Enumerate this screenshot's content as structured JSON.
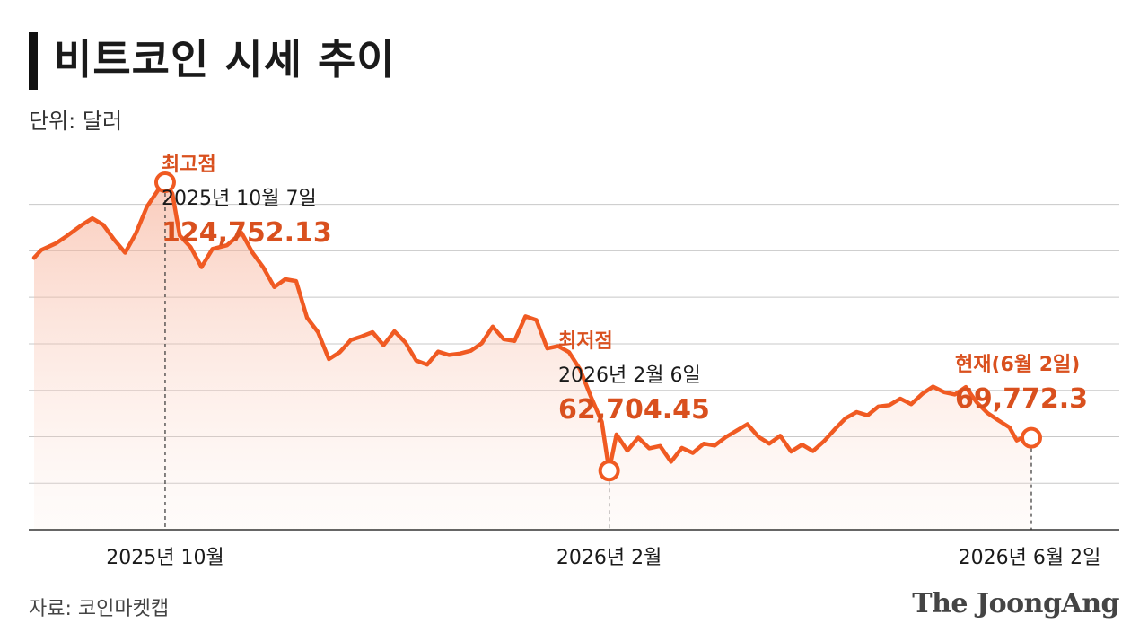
{
  "title": "비트코인 시세 추이",
  "unit_label": "단위: 달러",
  "source": "자료: 코인마켓캡",
  "logo": "The JoongAng",
  "colors": {
    "line": "#f05a22",
    "label": "#d9501e",
    "grid": "#c8c8c8"
  },
  "chart_data": {
    "type": "area",
    "title": "비트코인 시세 추이",
    "unit": "달러",
    "x_range": [
      "2025-09-01",
      "2026-06-02"
    ],
    "ylim": [
      50000,
      135000
    ],
    "x_ticks": [
      "2025년 10월",
      "2026년 2월",
      "2026년 6월 2일"
    ],
    "grid": true,
    "series": [
      {
        "values": [
          [
            "2025-09-01",
            108500
          ],
          [
            "2025-09-03",
            110200
          ],
          [
            "2025-09-07",
            111600
          ],
          [
            "2025-09-10",
            113200
          ],
          [
            "2025-09-14",
            115500
          ],
          [
            "2025-09-17",
            117000
          ],
          [
            "2025-09-20",
            115600
          ],
          [
            "2025-09-23",
            112400
          ],
          [
            "2025-09-26",
            109600
          ],
          [
            "2025-09-29",
            113800
          ],
          [
            "2025-10-02",
            119500
          ],
          [
            "2025-10-05",
            123000
          ],
          [
            "2025-10-07",
            124752.13
          ],
          [
            "2025-10-09",
            122300
          ],
          [
            "2025-10-11",
            113300
          ],
          [
            "2025-10-14",
            110800
          ],
          [
            "2025-10-17",
            106500
          ],
          [
            "2025-10-20",
            110400
          ],
          [
            "2025-10-24",
            111200
          ],
          [
            "2025-10-28",
            113900
          ],
          [
            "2025-10-31",
            109600
          ],
          [
            "2025-11-03",
            106400
          ],
          [
            "2025-11-06",
            102200
          ],
          [
            "2025-11-09",
            103900
          ],
          [
            "2025-11-12",
            103500
          ],
          [
            "2025-11-15",
            95600
          ],
          [
            "2025-11-18",
            92500
          ],
          [
            "2025-11-21",
            86700
          ],
          [
            "2025-11-24",
            88200
          ],
          [
            "2025-11-27",
            90800
          ],
          [
            "2025-11-30",
            91600
          ],
          [
            "2025-12-03",
            92500
          ],
          [
            "2025-12-06",
            89700
          ],
          [
            "2025-12-09",
            92700
          ],
          [
            "2025-12-12",
            90300
          ],
          [
            "2025-12-15",
            86400
          ],
          [
            "2025-12-18",
            85500
          ],
          [
            "2025-12-21",
            88300
          ],
          [
            "2025-12-24",
            87600
          ],
          [
            "2025-12-27",
            87900
          ],
          [
            "2025-12-30",
            88500
          ],
          [
            "2026-01-02",
            90100
          ],
          [
            "2026-01-05",
            93700
          ],
          [
            "2026-01-08",
            91000
          ],
          [
            "2026-01-11",
            90600
          ],
          [
            "2026-01-14",
            95900
          ],
          [
            "2026-01-17",
            95100
          ],
          [
            "2026-01-20",
            89000
          ],
          [
            "2026-01-23",
            89500
          ],
          [
            "2026-01-26",
            88200
          ],
          [
            "2026-01-29",
            84500
          ],
          [
            "2026-02-01",
            78600
          ],
          [
            "2026-02-04",
            73200
          ],
          [
            "2026-02-06",
            62704.45
          ],
          [
            "2026-02-08",
            70500
          ],
          [
            "2026-02-11",
            67000
          ],
          [
            "2026-02-14",
            69800
          ],
          [
            "2026-02-17",
            67500
          ],
          [
            "2026-02-20",
            68000
          ],
          [
            "2026-02-23",
            64600
          ],
          [
            "2026-02-26",
            67600
          ],
          [
            "2026-03-01",
            66500
          ],
          [
            "2026-03-04",
            68500
          ],
          [
            "2026-03-07",
            68100
          ],
          [
            "2026-03-10",
            69900
          ],
          [
            "2026-03-13",
            71300
          ],
          [
            "2026-03-16",
            72700
          ],
          [
            "2026-03-19",
            70000
          ],
          [
            "2026-03-22",
            68500
          ],
          [
            "2026-03-25",
            70200
          ],
          [
            "2026-03-28",
            66800
          ],
          [
            "2026-03-31",
            68300
          ],
          [
            "2026-04-03",
            66900
          ],
          [
            "2026-04-06",
            69000
          ],
          [
            "2026-04-09",
            71600
          ],
          [
            "2026-04-12",
            74000
          ],
          [
            "2026-04-15",
            75300
          ],
          [
            "2026-04-18",
            74600
          ],
          [
            "2026-04-21",
            76500
          ],
          [
            "2026-04-24",
            76800
          ],
          [
            "2026-04-27",
            78200
          ],
          [
            "2026-04-30",
            77000
          ],
          [
            "2026-05-03",
            79200
          ],
          [
            "2026-05-06",
            80800
          ],
          [
            "2026-05-09",
            79600
          ],
          [
            "2026-05-12",
            79100
          ],
          [
            "2026-05-15",
            80700
          ],
          [
            "2026-05-18",
            77400
          ],
          [
            "2026-05-21",
            75100
          ],
          [
            "2026-05-24",
            73500
          ],
          [
            "2026-05-27",
            72000
          ],
          [
            "2026-05-29",
            69200
          ],
          [
            "2026-06-01",
            70400
          ],
          [
            "2026-06-02",
            69772.3
          ]
        ]
      }
    ],
    "annotations": [
      {
        "key": "high",
        "heading": "최고점",
        "date_label": "2025년 10월 7일",
        "date": "2025-10-07",
        "value": 124752.13,
        "value_label": "124,752.13"
      },
      {
        "key": "low",
        "heading": "최저점",
        "date_label": "2026년 2월 6일",
        "date": "2026-02-06",
        "value": 62704.45,
        "value_label": "62,704.45"
      },
      {
        "key": "current",
        "heading": "현재(6월 2일)",
        "date": "2026-06-02",
        "value": 69772.3,
        "value_label": "69,772.3"
      }
    ]
  }
}
